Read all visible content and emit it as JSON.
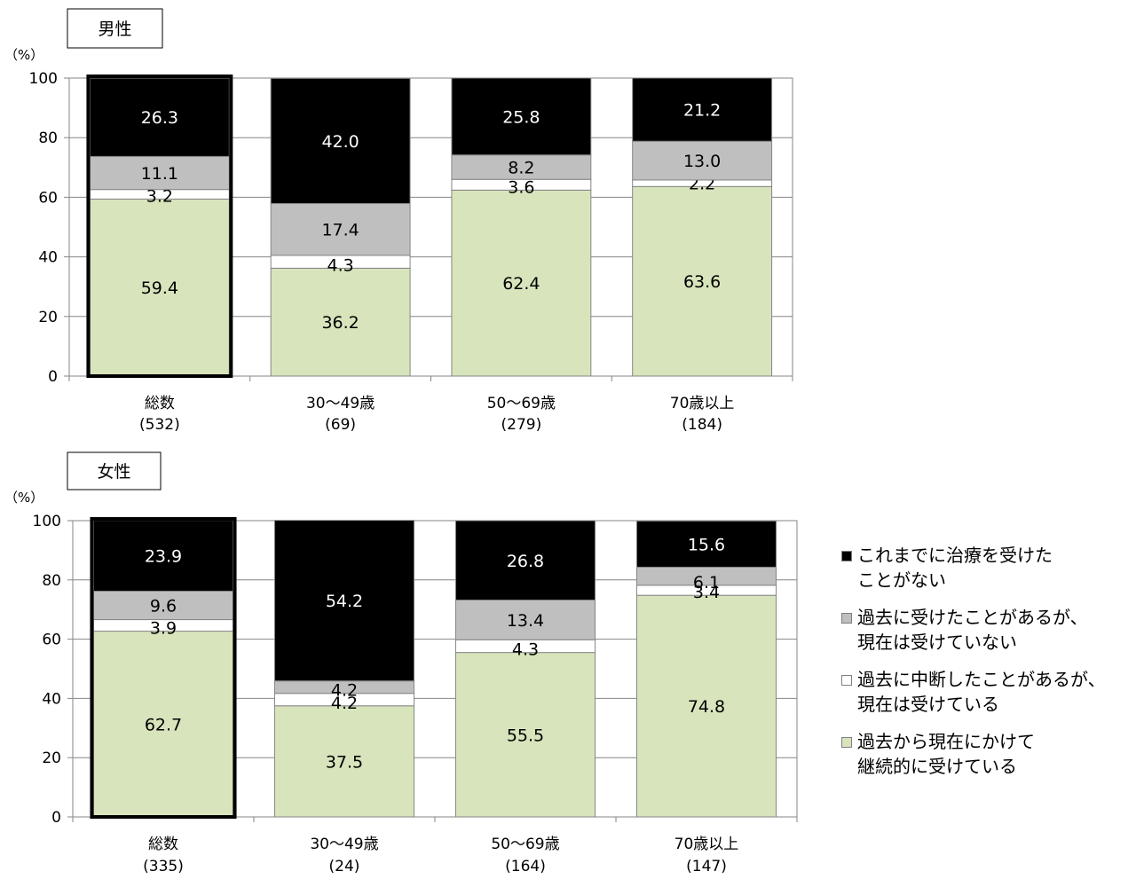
{
  "chart_data": [
    {
      "type": "bar",
      "stacked": true,
      "title": "男性",
      "ylabel": "（%）",
      "ylim": [
        0,
        100
      ],
      "yticks": [
        0,
        20,
        40,
        60,
        80,
        100
      ],
      "grid": true,
      "categories": [
        "総数",
        "30～49歳",
        "50～69歳",
        "70歳以上"
      ],
      "category_counts": [
        "(532)",
        "(69)",
        "(279)",
        "(184)"
      ],
      "highlighted_category": "総数",
      "series": [
        {
          "name": "過去から現在にかけて\n継続的に受けている",
          "color": "#d8e4bc",
          "values": [
            59.4,
            36.2,
            62.4,
            63.6
          ]
        },
        {
          "name": "過去に中断したことがあるが、\n現在は受けている",
          "color": "#ffffff",
          "values": [
            3.2,
            4.3,
            3.6,
            2.2
          ]
        },
        {
          "name": "過去に受けたことがあるが、\n現在は受けていない",
          "color": "#bfbfbf",
          "values": [
            11.1,
            17.4,
            8.2,
            13.0
          ]
        },
        {
          "name": "これまでに治療を受けた\nことがない",
          "color": "#000000",
          "values": [
            26.3,
            42.0,
            25.8,
            21.2
          ]
        }
      ]
    },
    {
      "type": "bar",
      "stacked": true,
      "title": "女性",
      "ylabel": "（%）",
      "ylim": [
        0,
        100
      ],
      "yticks": [
        0,
        20,
        40,
        60,
        80,
        100
      ],
      "grid": true,
      "categories": [
        "総数",
        "30～49歳",
        "50～69歳",
        "70歳以上"
      ],
      "category_counts": [
        "(335)",
        "(24)",
        "(164)",
        "(147)"
      ],
      "highlighted_category": "総数",
      "series": [
        {
          "name": "過去から現在にかけて\n継続的に受けている",
          "color": "#d8e4bc",
          "values": [
            62.7,
            37.5,
            55.5,
            74.8
          ]
        },
        {
          "name": "過去に中断したことがあるが、\n現在は受けている",
          "color": "#ffffff",
          "values": [
            3.9,
            4.2,
            4.3,
            3.4
          ]
        },
        {
          "name": "過去に受けたことがあるが、\n現在は受けていない",
          "color": "#bfbfbf",
          "values": [
            9.6,
            4.2,
            13.4,
            6.1
          ]
        },
        {
          "name": "これまでに治療を受けた\nことがない",
          "color": "#000000",
          "values": [
            23.9,
            54.2,
            26.8,
            15.6
          ]
        }
      ]
    }
  ],
  "legend": {
    "placement": "right",
    "items": [
      {
        "label": "これまでに治療を受けた\nことがない",
        "color": "#000000"
      },
      {
        "label": "過去に受けたことがあるが、\n現在は受けていない",
        "color": "#bfbfbf"
      },
      {
        "label": "過去に中断したことがあるが、\n現在は受けている",
        "color": "#ffffff"
      },
      {
        "label": "過去から現在にかけて\n継続的に受けている",
        "color": "#d8e4bc"
      }
    ]
  }
}
